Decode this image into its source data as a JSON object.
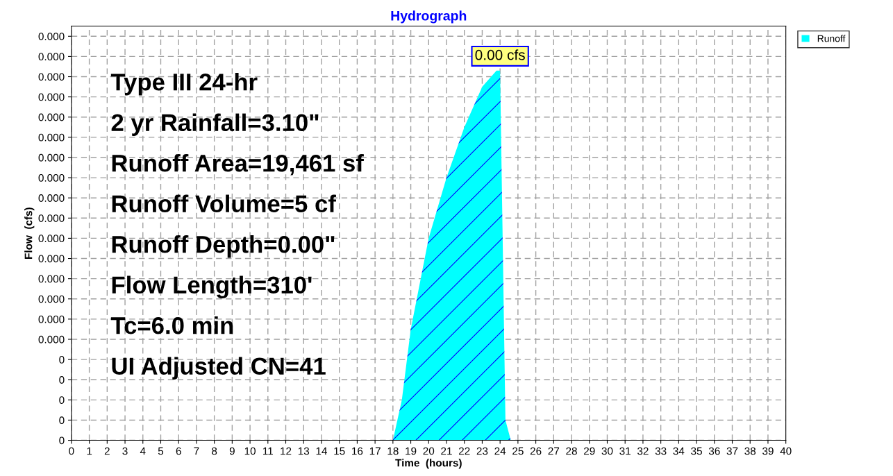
{
  "chart_data": {
    "type": "area",
    "title": "Hydrograph",
    "xlabel": "Time  (hours)",
    "ylabel": "Flow  (cfs)",
    "x": [
      0,
      18,
      18.5,
      19,
      20,
      21,
      22,
      23,
      23.8,
      24.0,
      24.3,
      24.6,
      40
    ],
    "series": [
      {
        "name": "Runoff",
        "color": "#00ffff",
        "values": [
          0,
          0,
          4e-05,
          0.00011,
          0.0002,
          0.00026,
          0.00031,
          0.00035,
          0.000366,
          0.000366,
          2e-05,
          0,
          0
        ]
      }
    ],
    "xlim": [
      0,
      40
    ],
    "xticks": [
      0,
      1,
      2,
      3,
      4,
      5,
      6,
      7,
      8,
      9,
      10,
      11,
      12,
      13,
      14,
      15,
      16,
      17,
      18,
      19,
      20,
      21,
      22,
      23,
      24,
      25,
      26,
      27,
      28,
      29,
      30,
      31,
      32,
      33,
      34,
      35,
      36,
      37,
      38,
      39,
      40
    ],
    "ylim": [
      0,
      0.00041
    ],
    "yticks": [
      {
        "value": 0,
        "label": "0"
      },
      {
        "value": 2e-05,
        "label": "0"
      },
      {
        "value": 4e-05,
        "label": "0"
      },
      {
        "value": 6e-05,
        "label": "0"
      },
      {
        "value": 8e-05,
        "label": "0"
      },
      {
        "value": 0.0001,
        "label": "0.000"
      },
      {
        "value": 0.00012,
        "label": "0.000"
      },
      {
        "value": 0.00014,
        "label": "0.000"
      },
      {
        "value": 0.00016,
        "label": "0.000"
      },
      {
        "value": 0.00018,
        "label": "0.000"
      },
      {
        "value": 0.0002,
        "label": "0.000"
      },
      {
        "value": 0.00022,
        "label": "0.000"
      },
      {
        "value": 0.00024,
        "label": "0.000"
      },
      {
        "value": 0.00026,
        "label": "0.000"
      },
      {
        "value": 0.00028,
        "label": "0.000"
      },
      {
        "value": 0.0003,
        "label": "0.000"
      },
      {
        "value": 0.00032,
        "label": "0.000"
      },
      {
        "value": 0.00034,
        "label": "0.000"
      },
      {
        "value": 0.00036,
        "label": "0.000"
      },
      {
        "value": 0.00038,
        "label": "0.000"
      },
      {
        "value": 0.0004,
        "label": "0.000"
      }
    ],
    "grid": true,
    "legend": "top right",
    "annotations": [
      {
        "text": "0.00 cfs",
        "x": 24,
        "y": 0.000366
      },
      "Type III 24-hr",
      "2 yr Rainfall=3.10\"",
      "Runoff Area=19,461 sf",
      "Runoff Volume=5 cf",
      "Runoff Depth=0.00\"",
      "Flow Length=310'",
      "Tc=6.0 min",
      "UI Adjusted CN=41"
    ]
  }
}
